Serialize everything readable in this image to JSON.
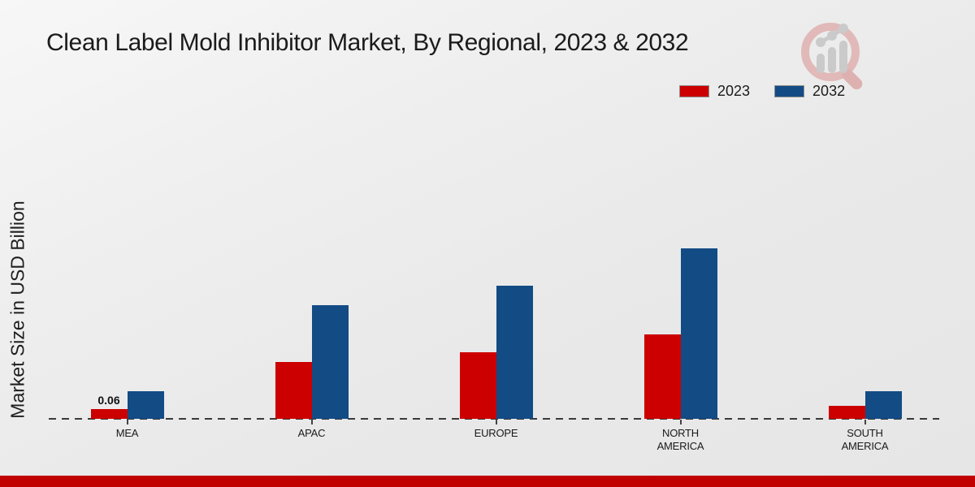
{
  "colors": {
    "footer_bar": "#c10000",
    "series_2023": "#cc0000",
    "series_2032": "#134b85",
    "background": "#ececec"
  },
  "logo": {
    "name": "magnifier-bar-chart-logo"
  },
  "chart_data": {
    "type": "bar",
    "title": "Clean Label Mold Inhibitor Market, By Regional, 2023 & 2032",
    "xlabel": "",
    "ylabel": "Market Size in USD Billion",
    "categories": [
      "MEA",
      "APAC",
      "EUROPE",
      "NORTH AMERICA",
      "SOUTH AMERICA"
    ],
    "series": [
      {
        "name": "2023",
        "color": "#cc0000",
        "values": [
          0.06,
          0.35,
          0.41,
          0.52,
          0.08
        ]
      },
      {
        "name": "2032",
        "color": "#134b85",
        "values": [
          0.17,
          0.7,
          0.82,
          1.05,
          0.17
        ]
      }
    ],
    "bar_labels": [
      {
        "series": "2023",
        "category": "MEA",
        "text": "0.06"
      }
    ],
    "ylim": [
      0,
      1.3
    ],
    "grid": false,
    "legend_position": "top-right",
    "baseline_style": "dashed",
    "y_axis_ticks_visible": false
  }
}
